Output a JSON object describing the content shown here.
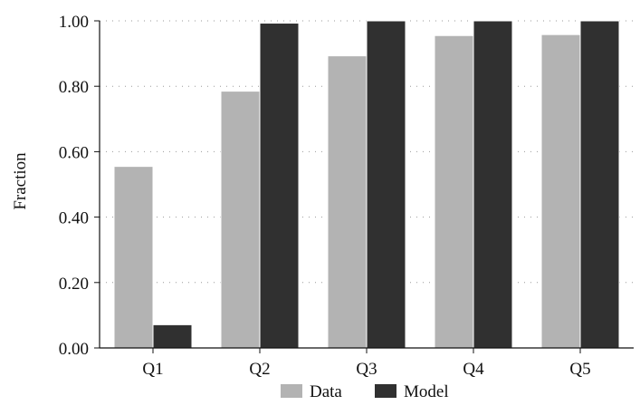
{
  "chart_data": {
    "type": "bar",
    "categories": [
      "Q1",
      "Q2",
      "Q3",
      "Q4",
      "Q5"
    ],
    "series": [
      {
        "name": "Data",
        "values": [
          0.555,
          0.785,
          0.893,
          0.955,
          0.958
        ],
        "color": "#b3b3b3"
      },
      {
        "name": "Model",
        "values": [
          0.071,
          0.993,
          1.0,
          1.0,
          1.0
        ],
        "color": "#303030"
      }
    ],
    "title": "",
    "xlabel": "",
    "ylabel": "Fraction",
    "ylim": [
      0,
      1
    ],
    "yticks": [
      "0.00",
      "0.20",
      "0.40",
      "0.60",
      "0.80",
      "1.00"
    ],
    "grid": "horizontal dotted",
    "legend": "bottom-center"
  }
}
